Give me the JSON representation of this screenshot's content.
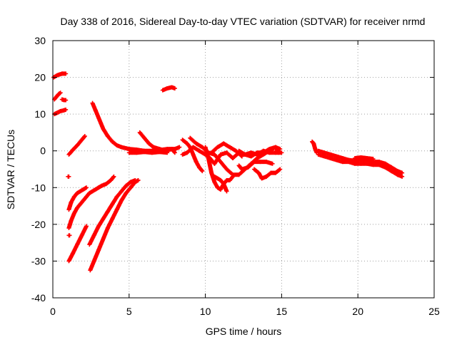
{
  "chart_data": {
    "type": "scatter",
    "title": "Day 338 of 2016, Sidereal Day-to-day VTEC variation (SDTVAR) for receiver nrmd",
    "xlabel": "GPS time / hours",
    "ylabel": "SDTVAR / TECUs",
    "xlim": [
      0,
      25
    ],
    "ylim": [
      -40,
      30
    ],
    "xticks": [
      0,
      5,
      10,
      15,
      20,
      25
    ],
    "yticks": [
      -40,
      -30,
      -20,
      -10,
      0,
      10,
      20,
      30
    ],
    "grid": true,
    "marker": "+",
    "colors": {
      "series": "#ff0000",
      "grid": "#a0a0a0",
      "axis": "#000000"
    },
    "series": [
      {
        "tracks": [
          [
            [
              0.05,
              20
            ],
            [
              0.3,
              20.6
            ],
            [
              0.6,
              21
            ],
            [
              0.85,
              21
            ]
          ],
          [
            [
              0.1,
              14
            ],
            [
              0.25,
              14.8
            ],
            [
              0.4,
              15.5
            ],
            [
              0.5,
              15.8
            ]
          ],
          [
            [
              0.6,
              14
            ],
            [
              0.75,
              13.8
            ],
            [
              0.85,
              13.8
            ]
          ],
          [
            [
              0.1,
              10
            ],
            [
              0.3,
              10.4
            ],
            [
              0.5,
              10.8
            ],
            [
              0.7,
              11
            ],
            [
              0.85,
              11.2
            ]
          ],
          [
            [
              1.0,
              -7
            ],
            [
              1.05,
              -7
            ]
          ],
          [
            [
              1.05,
              -1
            ],
            [
              1.3,
              0.2
            ],
            [
              1.6,
              1.5
            ],
            [
              1.9,
              3
            ],
            [
              2.1,
              4
            ]
          ],
          [
            [
              1.05,
              -16
            ],
            [
              1.2,
              -14
            ],
            [
              1.4,
              -12.5
            ],
            [
              1.6,
              -11.5
            ],
            [
              1.8,
              -11
            ],
            [
              2.0,
              -10.5
            ],
            [
              2.2,
              -10
            ]
          ],
          [
            [
              1.05,
              -21
            ],
            [
              1.2,
              -19
            ],
            [
              1.4,
              -17
            ],
            [
              1.6,
              -15.5
            ],
            [
              1.8,
              -14.5
            ],
            [
              2.0,
              -13.5
            ],
            [
              2.2,
              -12.5
            ],
            [
              2.4,
              -11.5
            ],
            [
              2.6,
              -11
            ],
            [
              2.8,
              -10.5
            ],
            [
              3.0,
              -10
            ],
            [
              3.2,
              -9.5
            ],
            [
              3.5,
              -9
            ],
            [
              3.8,
              -8
            ],
            [
              4.0,
              -7
            ]
          ],
          [
            [
              1.05,
              -23
            ],
            [
              1.1,
              -23
            ]
          ],
          [
            [
              1.05,
              -30
            ],
            [
              1.3,
              -28
            ],
            [
              1.6,
              -25.5
            ],
            [
              1.9,
              -23
            ],
            [
              2.2,
              -20.5
            ]
          ],
          [
            [
              2.4,
              -25.5
            ],
            [
              2.7,
              -23
            ],
            [
              3.0,
              -20.5
            ],
            [
              3.3,
              -18.5
            ],
            [
              3.6,
              -16.5
            ],
            [
              3.9,
              -14.5
            ],
            [
              4.2,
              -12.5
            ],
            [
              4.5,
              -11
            ],
            [
              4.8,
              -9.5
            ],
            [
              5.1,
              -8.5
            ],
            [
              5.4,
              -8
            ]
          ],
          [
            [
              2.45,
              -32.5
            ],
            [
              2.7,
              -30
            ],
            [
              3.0,
              -27
            ],
            [
              3.3,
              -24
            ],
            [
              3.6,
              -21
            ],
            [
              3.9,
              -18.5
            ],
            [
              4.2,
              -16
            ],
            [
              4.5,
              -13.5
            ],
            [
              4.8,
              -11.5
            ],
            [
              5.1,
              -10
            ],
            [
              5.4,
              -8.5
            ],
            [
              5.6,
              -8
            ]
          ],
          [
            [
              2.6,
              13
            ],
            [
              2.8,
              11
            ],
            [
              3.0,
              9
            ],
            [
              3.3,
              6
            ],
            [
              3.6,
              4
            ],
            [
              3.9,
              2.5
            ],
            [
              4.2,
              1.5
            ],
            [
              4.5,
              1
            ],
            [
              5.0,
              0.5
            ],
            [
              5.5,
              0.3
            ],
            [
              6.0,
              0
            ],
            [
              6.5,
              0
            ],
            [
              7.0,
              0.2
            ],
            [
              7.5,
              0.5
            ],
            [
              8.0,
              0.5
            ],
            [
              8.3,
              1
            ]
          ],
          [
            [
              5.7,
              5
            ],
            [
              6.0,
              3.5
            ],
            [
              6.3,
              2
            ],
            [
              6.6,
              1
            ],
            [
              7.0,
              0.5
            ],
            [
              7.4,
              0
            ],
            [
              7.8,
              0.5
            ],
            [
              8.0,
              -0.5
            ]
          ],
          [
            [
              5.0,
              -0.5
            ],
            [
              5.5,
              -0.5
            ],
            [
              6.0,
              -0.3
            ],
            [
              6.5,
              -0.5
            ],
            [
              7.0,
              -0.3
            ],
            [
              7.5,
              -0.5
            ]
          ],
          [
            [
              7.2,
              16.5
            ],
            [
              7.5,
              17
            ],
            [
              7.8,
              17.3
            ],
            [
              8.0,
              17
            ]
          ],
          [
            [
              8.5,
              3
            ],
            [
              8.8,
              2
            ],
            [
              9.0,
              1
            ],
            [
              9.2,
              -1
            ],
            [
              9.4,
              -3
            ],
            [
              9.6,
              -4.5
            ],
            [
              9.8,
              -5.5
            ]
          ],
          [
            [
              8.5,
              -1
            ],
            [
              8.8,
              -0.5
            ],
            [
              9.2,
              1
            ],
            [
              9.6,
              0
            ],
            [
              10.0,
              -1
            ],
            [
              10.3,
              -2
            ],
            [
              10.6,
              -3.5
            ],
            [
              11.0,
              -1
            ],
            [
              11.4,
              -0.5
            ],
            [
              11.8,
              -2
            ],
            [
              12.2,
              -0.5
            ],
            [
              12.6,
              -1
            ],
            [
              13.0,
              -0.5
            ],
            [
              13.4,
              -1
            ],
            [
              13.8,
              0
            ],
            [
              14.2,
              -0.5
            ],
            [
              14.6,
              -0.5
            ],
            [
              15.0,
              -0.5
            ]
          ],
          [
            [
              9.0,
              3.5
            ],
            [
              9.4,
              2
            ],
            [
              9.8,
              1
            ],
            [
              10.2,
              -0.5
            ],
            [
              10.6,
              -1
            ],
            [
              11.0,
              -3
            ],
            [
              11.4,
              -5
            ],
            [
              11.8,
              -6.5
            ],
            [
              12.2,
              -6.5
            ],
            [
              12.6,
              -5
            ],
            [
              13.0,
              -3.5
            ],
            [
              13.4,
              -2
            ],
            [
              13.8,
              -1
            ],
            [
              14.2,
              0
            ],
            [
              14.6,
              1
            ],
            [
              14.9,
              0.5
            ]
          ],
          [
            [
              10.0,
              1
            ],
            [
              10.2,
              -2
            ],
            [
              10.4,
              -6
            ],
            [
              10.6,
              -8.5
            ],
            [
              10.8,
              -10
            ],
            [
              11.0,
              -10.5
            ],
            [
              11.2,
              -9
            ],
            [
              11.4,
              -8
            ],
            [
              11.6,
              -8
            ],
            [
              11.8,
              -7
            ]
          ],
          [
            [
              10.6,
              -7
            ],
            [
              10.8,
              -7.5
            ],
            [
              11.0,
              -8
            ],
            [
              11.2,
              -9
            ],
            [
              11.4,
              -11
            ]
          ],
          [
            [
              10.4,
              -0.5
            ],
            [
              10.8,
              1
            ],
            [
              11.2,
              2
            ],
            [
              11.6,
              1
            ],
            [
              12.0,
              0
            ],
            [
              12.4,
              -1.5
            ]
          ],
          [
            [
              12.2,
              -4
            ],
            [
              12.4,
              -5
            ],
            [
              12.8,
              -4.5
            ],
            [
              13.2,
              -3
            ],
            [
              13.6,
              -3
            ],
            [
              14.0,
              -3
            ],
            [
              14.4,
              -3.5
            ]
          ],
          [
            [
              13.2,
              -5
            ],
            [
              13.5,
              -6
            ],
            [
              13.7,
              -7.5
            ],
            [
              14.0,
              -7
            ],
            [
              14.3,
              -6
            ],
            [
              14.6,
              -6
            ],
            [
              14.9,
              -5
            ]
          ],
          [
            [
              12.2,
              0
            ],
            [
              12.6,
              -1
            ],
            [
              13.0,
              -1.5
            ],
            [
              13.4,
              -0.5
            ],
            [
              13.8,
              -0.5
            ],
            [
              14.2,
              0.5
            ],
            [
              14.6,
              1
            ],
            [
              14.8,
              -0.5
            ]
          ],
          [
            [
              17.0,
              2.5
            ],
            [
              17.1,
              2
            ],
            [
              17.2,
              0.5
            ],
            [
              17.3,
              -0.5
            ]
          ],
          [
            [
              17.4,
              0
            ],
            [
              17.8,
              -0.5
            ],
            [
              18.2,
              -1
            ],
            [
              18.6,
              -1.5
            ],
            [
              19.0,
              -2
            ],
            [
              19.4,
              -2.5
            ],
            [
              19.8,
              -2.7
            ],
            [
              20.2,
              -2.5
            ],
            [
              20.6,
              -2.5
            ],
            [
              21.0,
              -3
            ],
            [
              21.4,
              -3
            ],
            [
              21.8,
              -3.5
            ],
            [
              22.2,
              -4.5
            ],
            [
              22.6,
              -5.5
            ],
            [
              22.9,
              -6
            ]
          ],
          [
            [
              17.4,
              -1
            ],
            [
              17.8,
              -1.5
            ],
            [
              18.2,
              -2
            ],
            [
              18.6,
              -2.5
            ],
            [
              19.0,
              -3
            ],
            [
              19.4,
              -3
            ],
            [
              19.8,
              -3.5
            ],
            [
              20.2,
              -3.5
            ],
            [
              20.6,
              -3.5
            ],
            [
              21.0,
              -3.8
            ],
            [
              21.4,
              -3.8
            ],
            [
              21.8,
              -4.5
            ],
            [
              22.2,
              -5.5
            ],
            [
              22.6,
              -6.5
            ],
            [
              22.9,
              -7
            ]
          ],
          [
            [
              19.8,
              -2
            ],
            [
              20.2,
              -1.8
            ],
            [
              20.6,
              -2
            ],
            [
              21.0,
              -2.2
            ]
          ]
        ]
      }
    ]
  }
}
